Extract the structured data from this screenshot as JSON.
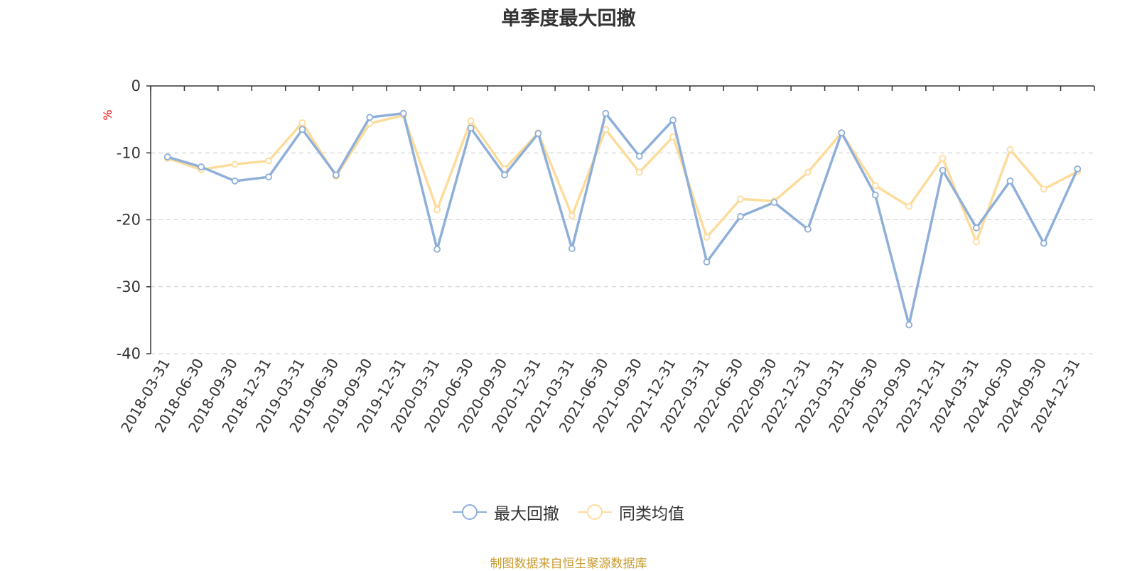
{
  "chart_data": {
    "type": "line",
    "title": "单季度最大回撤",
    "xlabel": "",
    "ylabel": "%",
    "ylim": [
      -40,
      0
    ],
    "yticks": [
      0,
      -10,
      -20,
      -30,
      -40
    ],
    "yticks_labels": [
      "0",
      "-10",
      "-20",
      "-30",
      "-40"
    ],
    "grid": true,
    "legend_position": "bottom-center",
    "categories": [
      "2018-03-31",
      "2018-06-30",
      "2018-09-30",
      "2018-12-31",
      "2019-03-31",
      "2019-06-30",
      "2019-09-30",
      "2019-12-31",
      "2020-03-31",
      "2020-06-30",
      "2020-09-30",
      "2020-12-31",
      "2021-03-31",
      "2021-06-30",
      "2021-09-30",
      "2021-12-31",
      "2022-03-31",
      "2022-06-30",
      "2022-09-30",
      "2022-12-31",
      "2023-03-31",
      "2023-06-30",
      "2023-09-30",
      "2023-12-31",
      "2024-03-31",
      "2024-06-30",
      "2024-09-30",
      "2024-12-31"
    ],
    "series": [
      {
        "name": "最大回撤",
        "color": "#8eafd9",
        "values": [
          -10.6,
          -12.1,
          -14.2,
          -13.6,
          -6.5,
          -13.3,
          -4.7,
          -4.1,
          -24.4,
          -6.3,
          -13.3,
          -7.1,
          -24.3,
          -4.1,
          -10.5,
          -5.1,
          -26.3,
          -19.5,
          -17.4,
          -21.4,
          -7.0,
          -16.3,
          -35.7,
          -12.6,
          -21.2,
          -14.2,
          -23.5,
          -12.4
        ]
      },
      {
        "name": "同类均值",
        "color": "#fddc9b",
        "values": [
          -10.8,
          -12.5,
          -11.7,
          -11.2,
          -5.5,
          -13.5,
          -5.6,
          -4.4,
          -18.5,
          -5.2,
          -12.4,
          -7.0,
          -19.4,
          -6.5,
          -12.9,
          -7.6,
          -22.6,
          -16.9,
          -17.2,
          -12.9,
          -7.0,
          -14.9,
          -18.0,
          -10.8,
          -23.3,
          -9.5,
          -15.4,
          -12.8
        ]
      }
    ]
  },
  "footer": {
    "source_text": "制图数据来自恒生聚源数据库",
    "color": "#c89b2f"
  },
  "colors": {
    "axis": "#333333",
    "grid": "#cccccc",
    "ylabel": "#ff0000",
    "text": "#333333"
  }
}
